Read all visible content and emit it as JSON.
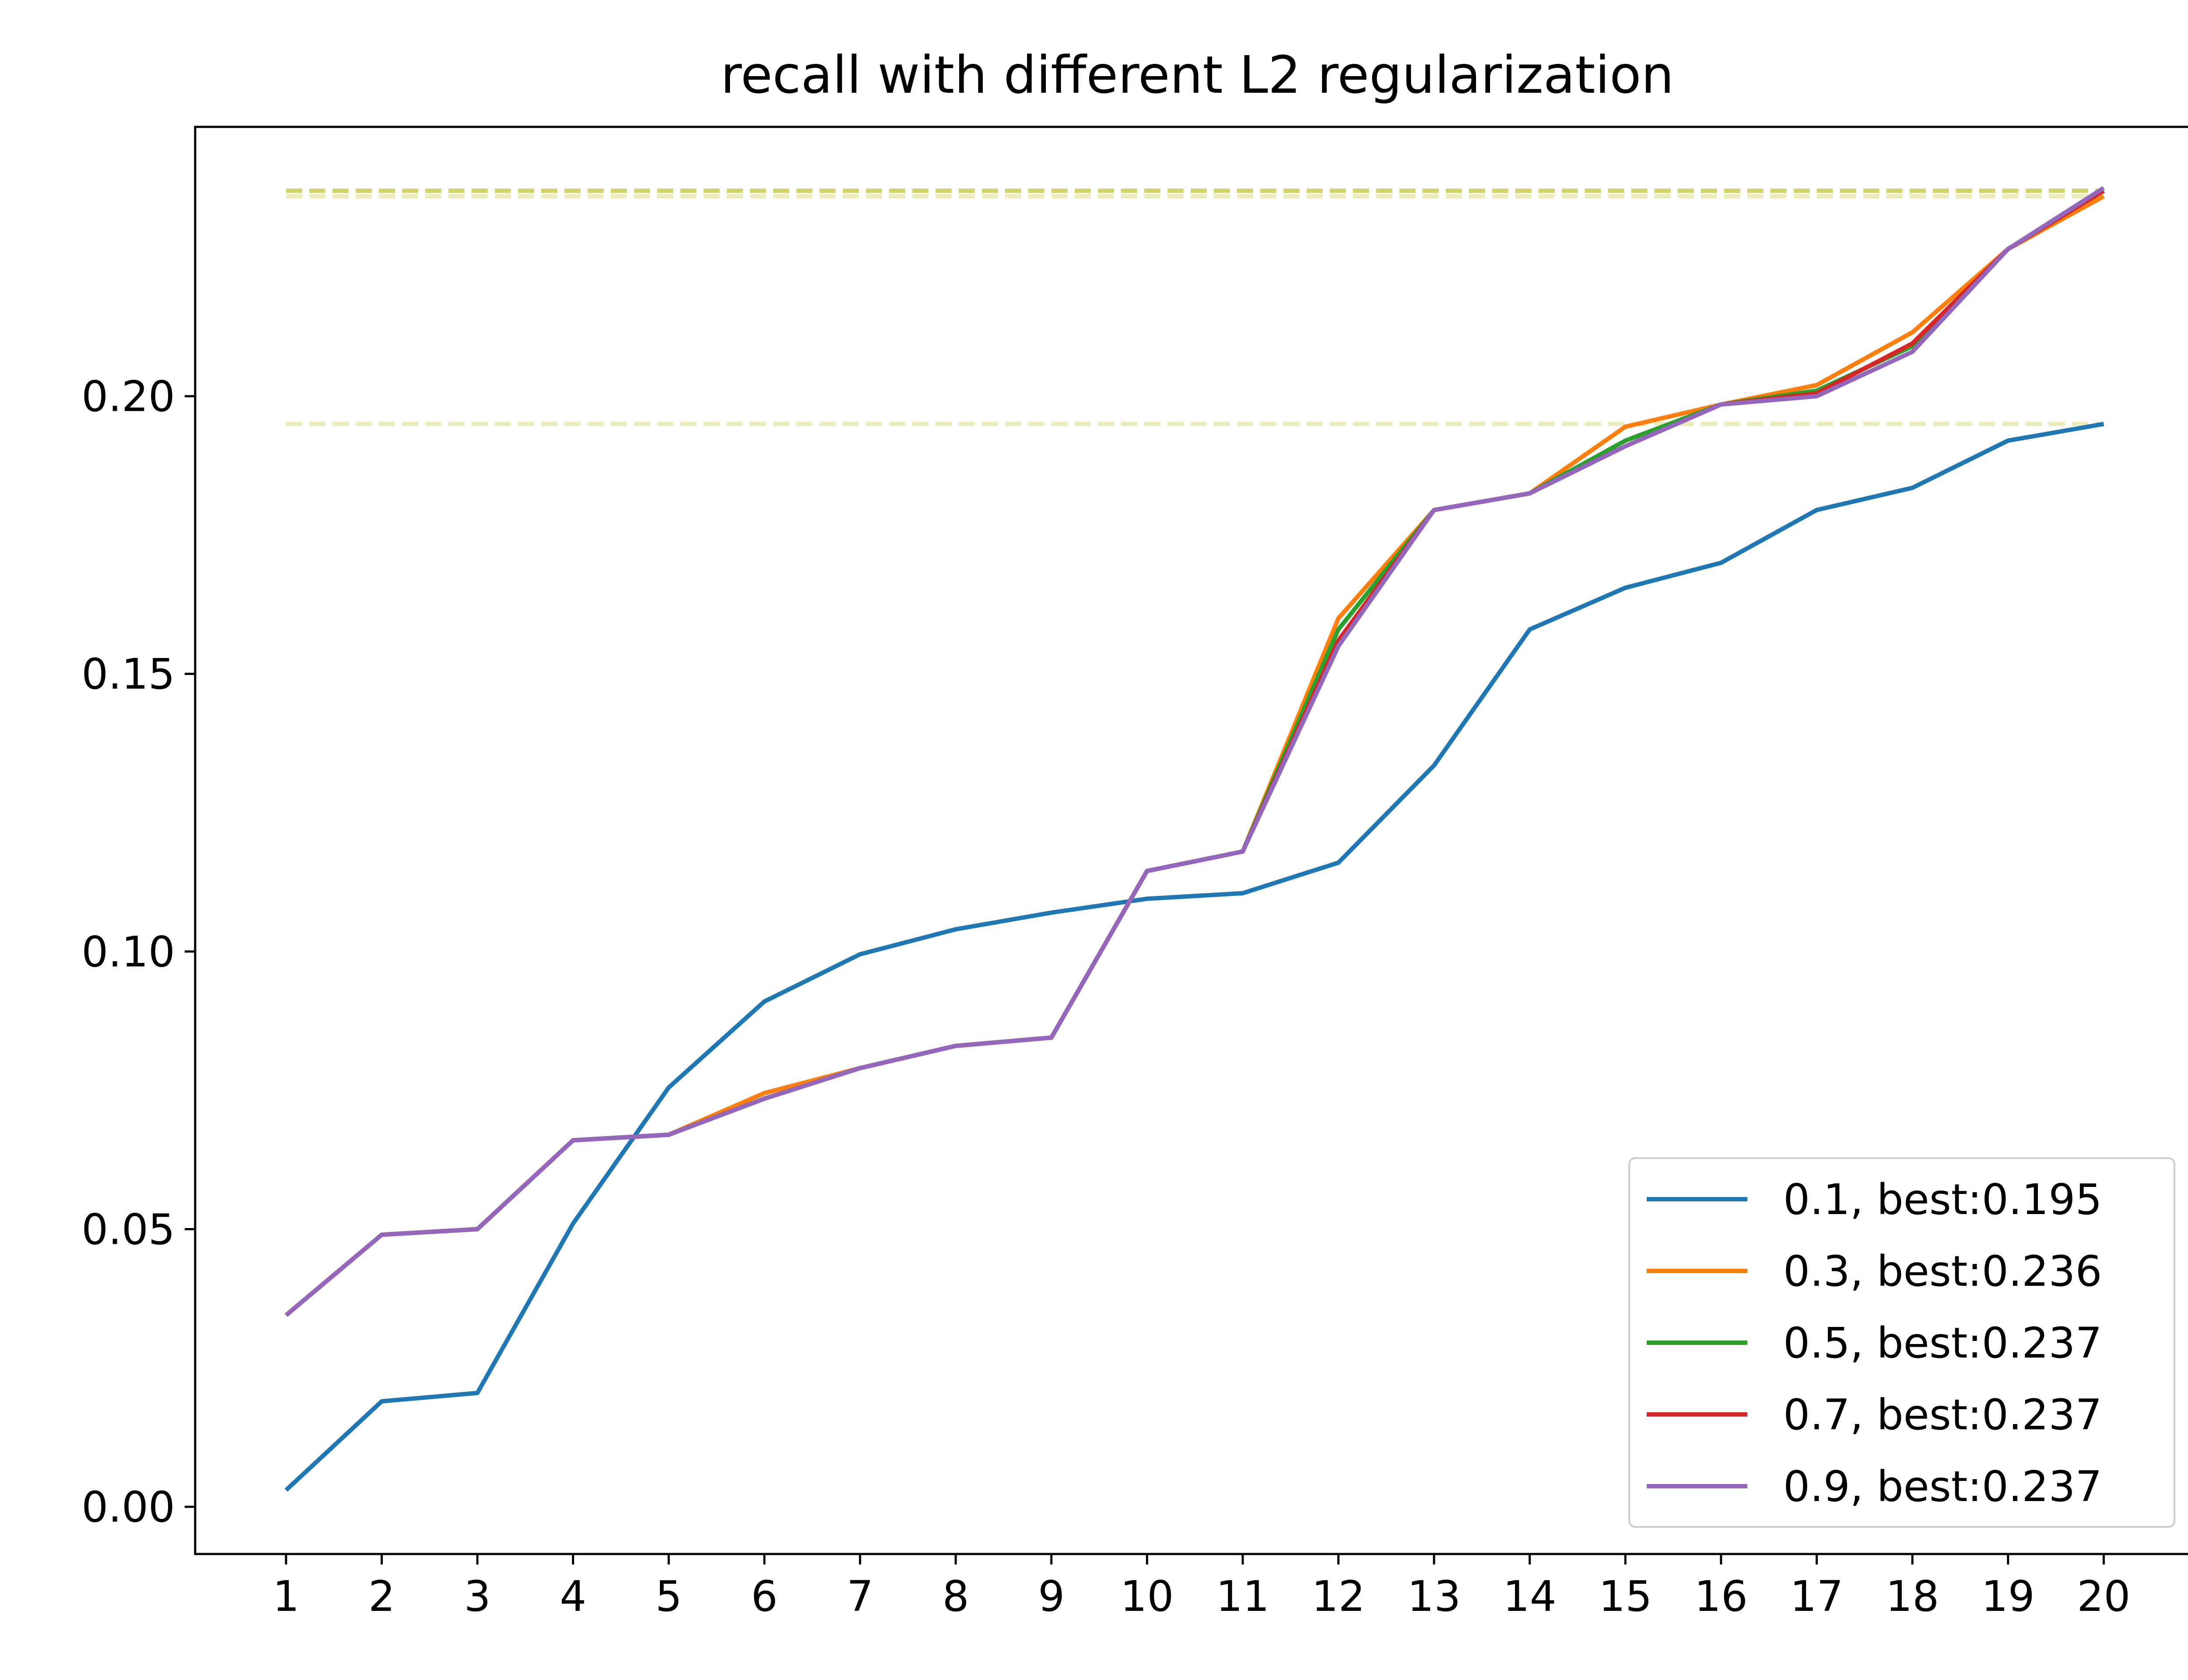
{
  "chart_data": {
    "type": "line",
    "title": "recall with different L2 regularization",
    "xlabel": "",
    "ylabel": "",
    "x": [
      1,
      2,
      3,
      4,
      5,
      6,
      7,
      8,
      9,
      10,
      11,
      12,
      13,
      14,
      15,
      16,
      17,
      18,
      19,
      20
    ],
    "xlim": [
      0.05,
      21.0
    ],
    "ylim": [
      -0.0085,
      0.2485
    ],
    "yticks": [
      0.0,
      0.05,
      0.1,
      0.15,
      0.2
    ],
    "ytick_labels": [
      "0.00",
      "0.05",
      "0.10",
      "0.15",
      "0.20"
    ],
    "xtick_labels": [
      "1",
      "2",
      "3",
      "4",
      "5",
      "6",
      "7",
      "8",
      "9",
      "10",
      "11",
      "12",
      "13",
      "14",
      "15",
      "16",
      "17",
      "18",
      "19",
      "20"
    ],
    "grid": false,
    "legend_position": "lower-right",
    "series": [
      {
        "name": "0.1, best:0.195",
        "color": "#1f77b4",
        "best": 0.195,
        "values": [
          0.003,
          0.019,
          0.0205,
          0.051,
          0.0755,
          0.091,
          0.0995,
          0.104,
          0.107,
          0.1095,
          0.1105,
          0.116,
          0.1335,
          0.158,
          0.1655,
          0.17,
          0.1795,
          0.1835,
          0.192,
          0.195
        ]
      },
      {
        "name": "0.3, best:0.236",
        "color": "#ff7f0e",
        "best": 0.236,
        "values": [
          0.0345,
          0.049,
          0.05,
          0.066,
          0.067,
          0.0745,
          0.079,
          0.083,
          0.0845,
          0.1145,
          0.118,
          0.16,
          0.1795,
          0.1825,
          0.1945,
          0.1985,
          0.202,
          0.2115,
          0.2265,
          0.236
        ]
      },
      {
        "name": "0.5, best:0.237",
        "color": "#2ca02c",
        "best": 0.237,
        "values": [
          0.0345,
          0.049,
          0.05,
          0.066,
          0.067,
          0.0735,
          0.079,
          0.083,
          0.0845,
          0.1145,
          0.118,
          0.158,
          0.1795,
          0.1825,
          0.192,
          0.1985,
          0.201,
          0.209,
          0.2265,
          0.237
        ]
      },
      {
        "name": "0.7, best:0.237",
        "color": "#d62728",
        "best": 0.237,
        "values": [
          0.0345,
          0.049,
          0.05,
          0.066,
          0.067,
          0.0735,
          0.079,
          0.083,
          0.0845,
          0.1145,
          0.118,
          0.156,
          0.1795,
          0.1825,
          0.191,
          0.1985,
          0.2005,
          0.2095,
          0.2265,
          0.237
        ]
      },
      {
        "name": "0.9, best:0.237",
        "color": "#9467bd",
        "best": 0.237,
        "values": [
          0.0345,
          0.049,
          0.05,
          0.066,
          0.067,
          0.0735,
          0.079,
          0.083,
          0.0845,
          0.1145,
          0.118,
          0.155,
          0.1795,
          0.1825,
          0.191,
          0.1985,
          0.2,
          0.208,
          0.2265,
          0.2375
        ]
      }
    ]
  }
}
